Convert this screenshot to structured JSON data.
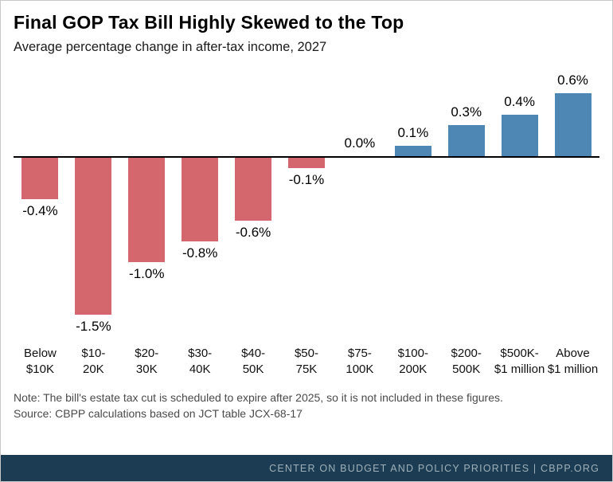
{
  "header": {
    "title": "Final GOP Tax Bill Highly Skewed to the Top",
    "subtitle": "Average percentage change in after-tax income, 2027"
  },
  "chart_data": {
    "type": "bar",
    "title": "Final GOP Tax Bill Highly Skewed to the Top",
    "subtitle": "Average percentage change in after-tax income, 2027",
    "categories": [
      "Below\n$10K",
      "$10-\n20K",
      "$20-\n30K",
      "$30-\n40K",
      "$40-\n50K",
      "$50-\n75K",
      "$75-\n100K",
      "$100-\n200K",
      "$200-\n500K",
      "$500K-\n$1 million",
      "Above\n$1 million"
    ],
    "values": [
      -0.4,
      -1.5,
      -1.0,
      -0.8,
      -0.6,
      -0.1,
      0.0,
      0.1,
      0.3,
      0.4,
      0.6
    ],
    "value_labels": [
      "-0.4%",
      "-1.5%",
      "-1.0%",
      "-0.8%",
      "-0.6%",
      "-0.1%",
      "0.0%",
      "0.1%",
      "0.3%",
      "0.4%",
      "0.6%"
    ],
    "xlabel": "",
    "ylabel": "Average percentage change in after-tax income",
    "ylim": [
      -1.6,
      0.8
    ],
    "grid": false,
    "legend": "none",
    "negative_color": "#d4666e",
    "positive_color": "#4e87b4",
    "axis_color": "#000000"
  },
  "notes": {
    "note": "Note: The bill's estate tax cut is scheduled to expire after 2025, so it is not included in these figures.",
    "source": "Source: CBPP calculations based on JCT table JCX-68-17"
  },
  "footer": {
    "text": "CENTER ON BUDGET AND POLICY PRIORITIES | CBPP.ORG"
  }
}
